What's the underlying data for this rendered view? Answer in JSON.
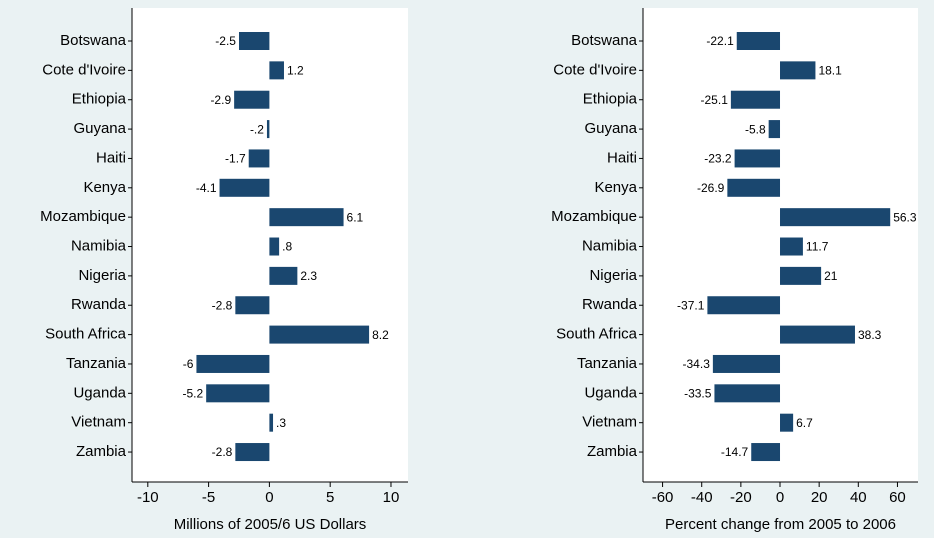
{
  "chart_data": [
    {
      "type": "barh",
      "categories": [
        "Botswana",
        "Cote d'Ivoire",
        "Ethiopia",
        "Guyana",
        "Haiti",
        "Kenya",
        "Mozambique",
        "Namibia",
        "Nigeria",
        "Rwanda",
        "South Africa",
        "Tanzania",
        "Uganda",
        "Vietnam",
        "Zambia"
      ],
      "values": [
        -2.5,
        1.2,
        -2.9,
        -0.2,
        -1.7,
        -4.1,
        6.1,
        0.8,
        2.3,
        -2.8,
        8.2,
        -6,
        -5.2,
        0.3,
        -2.8
      ],
      "value_labels": [
        "-2.5",
        "1.2",
        "-2.9",
        "-.2",
        "-1.7",
        "-4.1",
        "6.1",
        ".8",
        "2.3",
        "-2.8",
        "8.2",
        "-6",
        "-5.2",
        ".3",
        "-2.8"
      ],
      "color": "#1a476f",
      "xlim": [
        -11.3,
        11.4
      ],
      "xticks": [
        -10,
        -5,
        0,
        5,
        10
      ],
      "xlabel": "Millions of 2005/6 US Dollars"
    },
    {
      "type": "barh",
      "categories": [
        "Botswana",
        "Cote d'Ivoire",
        "Ethiopia",
        "Guyana",
        "Haiti",
        "Kenya",
        "Mozambique",
        "Namibia",
        "Nigeria",
        "Rwanda",
        "South Africa",
        "Tanzania",
        "Uganda",
        "Vietnam",
        "Zambia"
      ],
      "values": [
        -22.1,
        18.1,
        -25.1,
        -5.8,
        -23.2,
        -26.9,
        56.3,
        11.7,
        21,
        -37.1,
        38.3,
        -34.3,
        -33.5,
        6.7,
        -14.7
      ],
      "value_labels": [
        "-22.1",
        "18.1",
        "-25.1",
        "-5.8",
        "-23.2",
        "-26.9",
        "56.3",
        "11.7",
        "21",
        "-37.1",
        "38.3",
        "-34.3",
        "-33.5",
        "6.7",
        "-14.7"
      ],
      "color": "#1a476f",
      "xlim": [
        -70,
        70.5
      ],
      "xticks": [
        -60,
        -40,
        -20,
        0,
        20,
        40,
        60
      ],
      "xlabel": "Percent change from 2005 to 2006"
    }
  ]
}
